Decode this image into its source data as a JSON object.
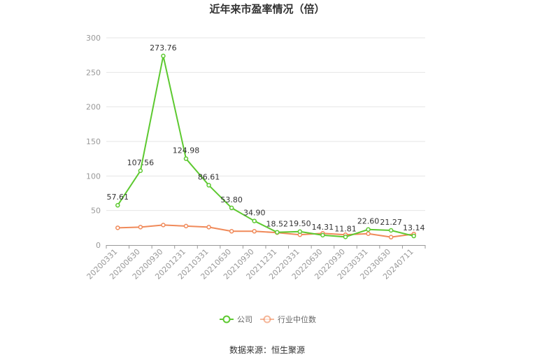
{
  "chart_data": {
    "type": "line",
    "title": "近年来市盈率情况（倍）",
    "categories": [
      "20200331",
      "20200630",
      "20200930",
      "20201231",
      "20210331",
      "20210630",
      "20210930",
      "20211231",
      "20220331",
      "20220630",
      "20220930",
      "20230331",
      "20230630",
      "20240711"
    ],
    "ylim": [
      0,
      300
    ],
    "yticks": [
      0,
      50,
      100,
      150,
      200,
      250,
      300
    ],
    "grid": true,
    "legend_position": "bottom",
    "series": [
      {
        "name": "公司",
        "color": "#5dc930",
        "values": [
          57.61,
          107.56,
          273.76,
          124.98,
          86.61,
          53.8,
          34.9,
          18.52,
          19.5,
          14.31,
          11.81,
          22.6,
          21.27,
          13.14
        ],
        "labels": [
          "57.61",
          "107.56",
          "273.76",
          "124.98",
          "86.61",
          "53.80",
          "34.90",
          "18.52",
          "19.50",
          "14.31",
          "11.81",
          "22.60",
          "21.27",
          "13.14"
        ]
      },
      {
        "name": "行业中位数",
        "color": "#f08a5a",
        "values": [
          25.0,
          26.0,
          29.0,
          27.5,
          26.0,
          20.0,
          20.0,
          18.0,
          15.0,
          17.0,
          15.0,
          16.5,
          11.5,
          16.0
        ]
      }
    ],
    "source": "数据来源：恒生聚源"
  }
}
